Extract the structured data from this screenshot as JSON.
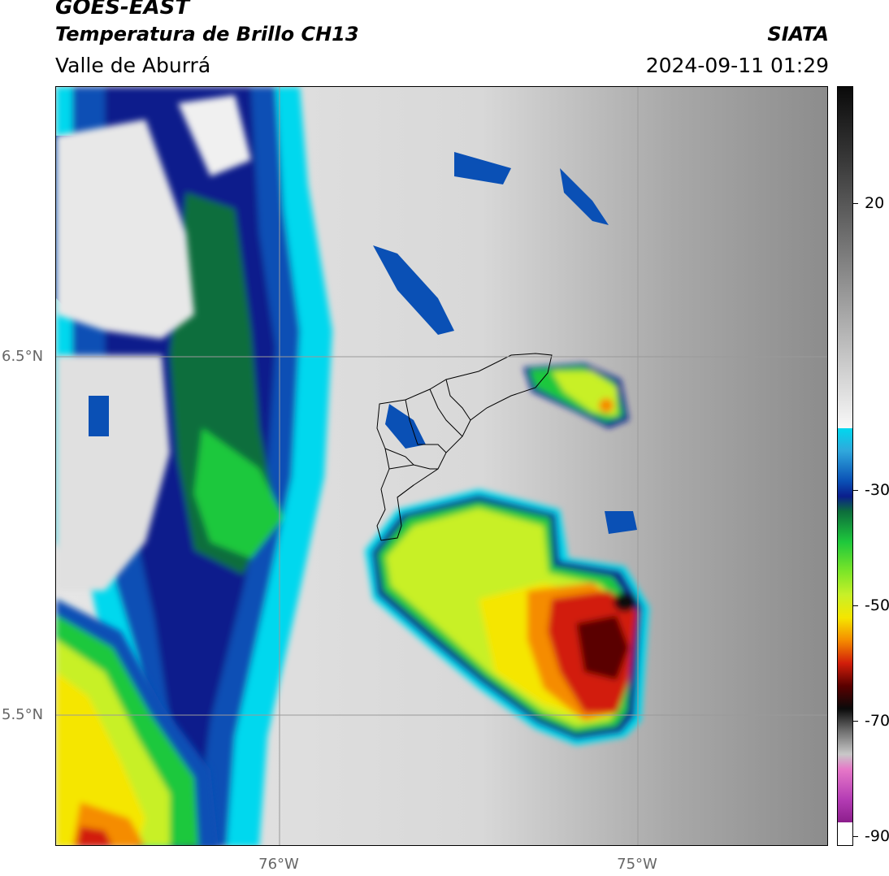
{
  "header": {
    "satellite": "GOES-EAST",
    "product": "Temperatura de Brillo CH13",
    "region": "Valle de Aburrá",
    "organization": "SIATA",
    "timestamp": "2024-09-11 01:29"
  },
  "axes": {
    "lat_labels": [
      "6.5°N",
      "5.5°N"
    ],
    "lon_labels": [
      "76°W",
      "75°W"
    ]
  },
  "colorbar": {
    "tick_labels": [
      "20",
      "-30",
      "-50",
      "-70",
      "-90"
    ],
    "colors": {
      "warm_gray": "#8a8a8a",
      "light_gray": "#f0f0f0",
      "cyan": "#00d8ee",
      "blue": "#0a50b5",
      "dark_blue": "#0a1e8c",
      "dark_green": "#0d6e3c",
      "green": "#1ec83c",
      "yellow_green": "#c8f028",
      "yellow": "#f5e600",
      "orange": "#f58c00",
      "red": "#d21e0a",
      "dark_red": "#5a0000",
      "black": "#0a0a0a",
      "pink": "#e678c8",
      "purple": "#8c1e8c"
    }
  }
}
